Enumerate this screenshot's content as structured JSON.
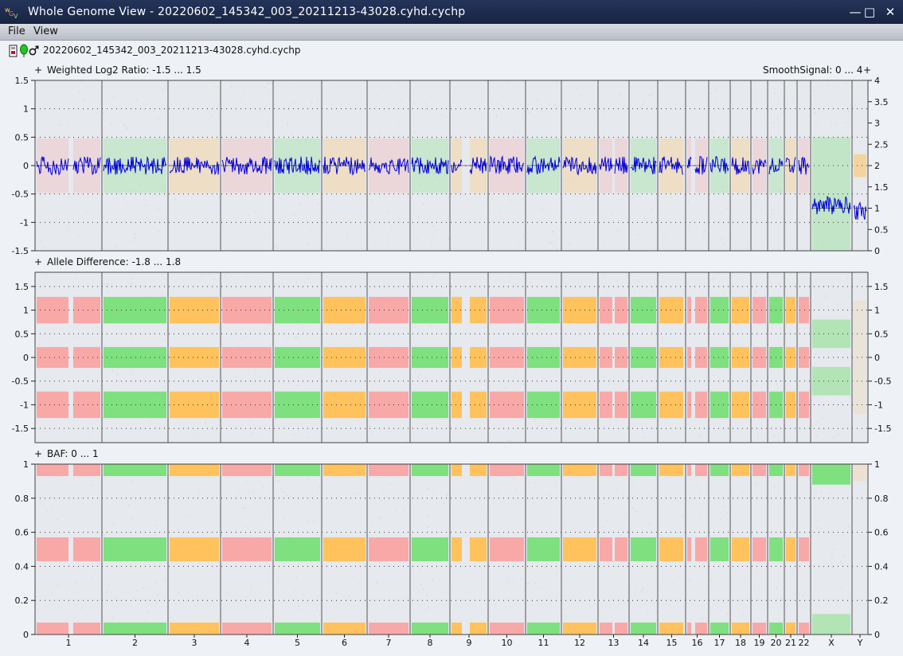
{
  "window": {
    "title": "Whole Genome View - 20220602_145342_003_20211213-43028.cyhd.cychp",
    "controls": {
      "minimize": "—",
      "maximize": "□",
      "close": "✕"
    }
  },
  "menu": {
    "file": "File",
    "view": "View"
  },
  "file_bar": {
    "filename": "20220602_145342_003_20211213-43028.cyhd.cychp",
    "icons": [
      "sample-card-icon",
      "green-balloon-icon",
      "male-symbol-icon"
    ]
  },
  "panels": {
    "log2": {
      "expand": "+",
      "label": "Weighted Log2 Ratio: -1.5 ... 1.5",
      "smooth_expand": "+",
      "smooth_label": "SmoothSignal: 0 ... 4"
    },
    "allele": {
      "expand": "+",
      "label": "Allele Difference: -1.8 ... 1.8"
    },
    "baf": {
      "expand": "+",
      "label": "BAF: 0 ... 1"
    }
  },
  "colors": {
    "pink": "#f9a8a8",
    "green": "#7ee07e",
    "orange": "#ffc25c",
    "blue": "#0000e0",
    "band": "#e9ecf0"
  },
  "chart_data": [
    {
      "type": "scatter",
      "title": "Weighted Log2 Ratio: -1.5 ... 1.5",
      "secondary_label": "SmoothSignal: 0 ... 4",
      "ylim": [
        -1.5,
        1.5
      ],
      "y2lim": [
        0,
        4
      ],
      "yticks": [
        "1.5",
        "1",
        "0.5",
        "0",
        "-0.5",
        "-1",
        "-1.5"
      ],
      "y2ticks": [
        "4",
        "3.5",
        "3",
        "2.5",
        "2",
        "1.5",
        "1",
        "0.5",
        "0"
      ],
      "categories": [
        "1",
        "2",
        "3",
        "4",
        "5",
        "6",
        "7",
        "8",
        "9",
        "10",
        "11",
        "12",
        "13",
        "14",
        "15",
        "16",
        "17",
        "18",
        "19",
        "20",
        "21",
        "22",
        "X",
        "Y"
      ],
      "smooth_signal_copy_number": [
        2,
        2,
        2,
        2,
        2,
        2,
        2,
        2,
        2,
        2,
        2,
        2,
        2,
        2,
        2,
        2,
        2,
        2,
        2,
        2,
        2,
        2,
        1,
        1
      ]
    },
    {
      "type": "scatter",
      "title": "Allele Difference: -1.8 ... 1.8",
      "ylim": [
        -1.8,
        1.8
      ],
      "yticks": [
        "1.5",
        "1",
        "0.5",
        "0",
        "-0.5",
        "-1",
        "-1.5"
      ],
      "categories": [
        "1",
        "2",
        "3",
        "4",
        "5",
        "6",
        "7",
        "8",
        "9",
        "10",
        "11",
        "12",
        "13",
        "14",
        "15",
        "16",
        "17",
        "18",
        "19",
        "20",
        "21",
        "22",
        "X",
        "Y"
      ],
      "bands_autosomes": [
        1,
        0,
        -1
      ],
      "bands_X": [
        0.5,
        -0.5
      ]
    },
    {
      "type": "scatter",
      "title": "BAF: 0 ... 1",
      "ylim": [
        0,
        1
      ],
      "yticks": [
        "1",
        "0.8",
        "0.6",
        "0.4",
        "0.2",
        "0"
      ],
      "categories": [
        "1",
        "2",
        "3",
        "4",
        "5",
        "6",
        "7",
        "8",
        "9",
        "10",
        "11",
        "12",
        "13",
        "14",
        "15",
        "16",
        "17",
        "18",
        "19",
        "20",
        "21",
        "22",
        "X",
        "Y"
      ],
      "bands_autosomes": [
        1,
        0.5,
        0
      ],
      "bands_X": [
        1,
        0
      ]
    }
  ]
}
